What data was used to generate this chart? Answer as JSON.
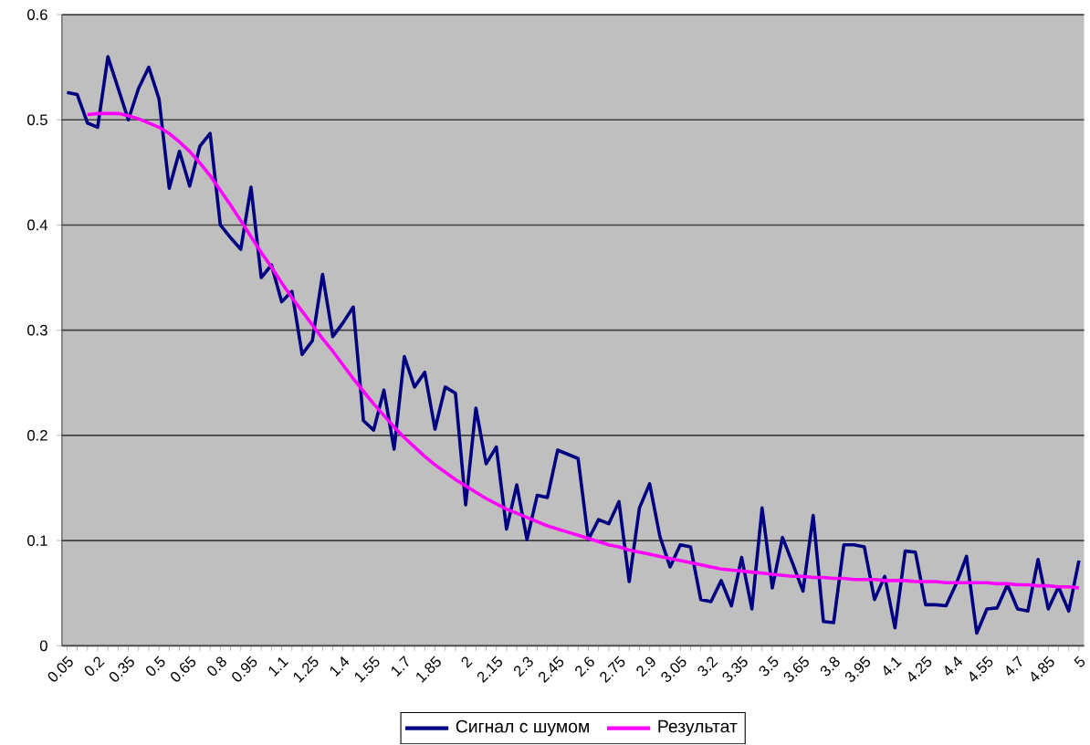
{
  "chart_data": {
    "type": "line",
    "categories": [
      "0.05",
      null,
      null,
      "0.2",
      null,
      null,
      "0.35",
      null,
      null,
      "0.5",
      null,
      null,
      "0.65",
      null,
      null,
      "0.8",
      null,
      null,
      "0.95",
      null,
      null,
      "1.1",
      null,
      null,
      "1.25",
      null,
      null,
      "1.4",
      null,
      null,
      "1.55",
      null,
      null,
      "1.7",
      null,
      null,
      "1.85",
      null,
      null,
      "2",
      null,
      null,
      "2.15",
      null,
      null,
      "2.3",
      null,
      null,
      "2.45",
      null,
      null,
      "2.6",
      null,
      null,
      "2.75",
      null,
      null,
      "2.9",
      null,
      null,
      "3.05",
      null,
      null,
      "3.2",
      null,
      null,
      "3.35",
      null,
      null,
      "3.5",
      null,
      null,
      "3.65",
      null,
      null,
      "3.8",
      null,
      null,
      "3.95",
      null,
      null,
      "4.1",
      null,
      null,
      "4.25",
      null,
      null,
      "4.4",
      null,
      null,
      "4.55",
      null,
      null,
      "4.7",
      null,
      null,
      "4.85",
      null,
      null,
      "5"
    ],
    "series": [
      {
        "name": "Сигнал с шумом",
        "color": "#000080",
        "values": [
          0.526,
          0.524,
          0.497,
          0.493,
          0.56,
          0.53,
          0.5,
          0.53,
          0.55,
          0.52,
          0.435,
          0.47,
          0.437,
          0.475,
          0.487,
          0.4,
          0.388,
          0.377,
          0.436,
          0.35,
          0.362,
          0.327,
          0.337,
          0.277,
          0.29,
          0.353,
          0.294,
          0.307,
          0.322,
          0.214,
          0.205,
          0.243,
          0.187,
          0.275,
          0.246,
          0.26,
          0.206,
          0.246,
          0.24,
          0.134,
          0.226,
          0.173,
          0.189,
          0.111,
          0.153,
          0.101,
          0.143,
          0.141,
          0.186,
          0.182,
          0.178,
          0.101,
          0.12,
          0.116,
          0.137,
          0.061,
          0.131,
          0.154,
          0.104,
          0.075,
          0.096,
          0.094,
          0.044,
          0.042,
          0.062,
          0.038,
          0.084,
          0.035,
          0.131,
          0.055,
          0.103,
          0.078,
          0.052,
          0.124,
          0.023,
          0.022,
          0.096,
          0.096,
          0.094,
          0.044,
          0.066,
          0.017,
          0.09,
          0.089,
          0.039,
          0.039,
          0.038,
          0.059,
          0.085,
          0.012,
          0.035,
          0.036,
          0.058,
          0.035,
          0.033,
          0.082,
          0.035,
          0.056,
          0.033,
          0.081
        ]
      },
      {
        "name": "Результат",
        "color": "#ff00ff",
        "values": [
          null,
          null,
          0.505,
          0.506,
          0.506,
          0.506,
          0.504,
          0.501,
          0.497,
          0.493,
          0.487,
          0.479,
          0.47,
          0.459,
          0.447,
          0.433,
          0.419,
          0.404,
          0.389,
          0.374,
          0.36,
          0.345,
          0.331,
          0.318,
          0.305,
          0.292,
          0.28,
          0.267,
          0.254,
          0.242,
          0.23,
          0.219,
          0.208,
          0.198,
          0.189,
          0.18,
          0.172,
          0.165,
          0.158,
          0.152,
          0.146,
          0.14,
          0.135,
          0.13,
          0.126,
          0.122,
          0.118,
          0.114,
          0.111,
          0.108,
          0.105,
          0.102,
          0.099,
          0.096,
          0.094,
          0.091,
          0.089,
          0.087,
          0.085,
          0.083,
          0.081,
          0.079,
          0.077,
          0.075,
          0.073,
          0.072,
          0.071,
          0.07,
          0.069,
          0.068,
          0.067,
          0.066,
          0.066,
          0.065,
          0.065,
          0.064,
          0.064,
          0.063,
          0.063,
          0.063,
          0.062,
          0.062,
          0.062,
          0.061,
          0.061,
          0.061,
          0.06,
          0.06,
          0.06,
          0.06,
          0.06,
          0.059,
          0.059,
          0.058,
          0.058,
          0.057,
          0.057,
          0.056,
          0.056,
          0.055
        ]
      }
    ],
    "ylim": [
      0,
      0.6
    ],
    "yticks": [
      0,
      0.1,
      0.2,
      0.3,
      0.4,
      0.5,
      0.6
    ],
    "grid": "y",
    "legend": "bottom",
    "marker": "none",
    "line_style": "solid"
  }
}
